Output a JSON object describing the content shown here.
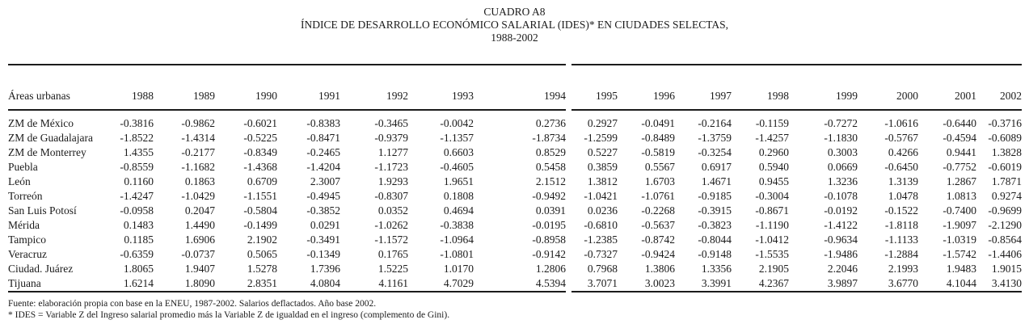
{
  "title": {
    "cuadro": "CUADRO A8",
    "heading": "ÍNDICE DE DESARROLLO ECONÓMICO SALARIAL (IDES)* EN CIUDADES SELECTAS,",
    "period": "1988-2002"
  },
  "table": {
    "corner_header": "Áreas urbanas",
    "years_left": [
      "1988",
      "1989",
      "1990",
      "1991",
      "1992",
      "1993",
      "1994"
    ],
    "years_right": [
      "1995",
      "1996",
      "1997",
      "1998",
      "1999",
      "2000",
      "2001",
      "2002"
    ],
    "rows": [
      {
        "label": "ZM de México",
        "values_left": [
          "-0.3816",
          "-0.9862",
          "-0.6021",
          "-0.8383",
          "-0.3465",
          "-0.0042",
          "0.2736"
        ],
        "values_right": [
          "0.2927",
          "-0.0491",
          "-0.2164",
          "-0.1159",
          "-0.7272",
          "-1.0616",
          "-0.6440",
          "-0.3716"
        ]
      },
      {
        "label": "ZM de Guadalajara",
        "values_left": [
          "-1.8522",
          "-1.4314",
          "-0.5225",
          "-0.8471",
          "-0.9379",
          "-1.1357",
          "-1.8734"
        ],
        "values_right": [
          "-1.2599",
          "-0.8489",
          "-1.3759",
          "-1.4257",
          "-1.1830",
          "-0.5767",
          "-0.4594",
          "-0.6089"
        ]
      },
      {
        "label": "ZM de Monterrey",
        "values_left": [
          "1.4355",
          "-0.2177",
          "-0.8349",
          "-0.2465",
          "1.1277",
          "0.6603",
          "0.8529"
        ],
        "values_right": [
          "0.5227",
          "-0.5819",
          "-0.3254",
          "0.2960",
          "0.3003",
          "0.4266",
          "0.9441",
          "1.3828"
        ]
      },
      {
        "label": "Puebla",
        "values_left": [
          "-0.8559",
          "-1.1682",
          "-1.4368",
          "-1.4204",
          "-1.1723",
          "-0.4605",
          "0.5458"
        ],
        "values_right": [
          "0.3859",
          "0.5567",
          "0.6917",
          "0.5940",
          "0.0669",
          "-0.6450",
          "-0.7752",
          "-0.6019"
        ]
      },
      {
        "label": "León",
        "values_left": [
          "0.1160",
          "0.1863",
          "0.6709",
          "2.3007",
          "1.9293",
          "1.9651",
          "2.1512"
        ],
        "values_right": [
          "1.3812",
          "1.6703",
          "1.4671",
          "0.9455",
          "1.3236",
          "1.3139",
          "1.2867",
          "1.7871"
        ]
      },
      {
        "label": "Torreón",
        "values_left": [
          "-1.4247",
          "-1.0429",
          "-1.1551",
          "-0.4945",
          "-0.8307",
          "0.1808",
          "-0.9492"
        ],
        "values_right": [
          "-1.0421",
          "-1.0761",
          "-0.9185",
          "-0.3004",
          "-0.1078",
          "1.0478",
          "1.0813",
          "0.9274"
        ]
      },
      {
        "label": "San Luis Potosí",
        "values_left": [
          "-0.0958",
          "0.2047",
          "-0.5804",
          "-0.3852",
          "0.0352",
          "0.4694",
          "0.0391"
        ],
        "values_right": [
          "0.0236",
          "-0.2268",
          "-0.3915",
          "-0.8671",
          "-0.0192",
          "-0.1522",
          "-0.7400",
          "-0.9699"
        ]
      },
      {
        "label": "Mérida",
        "values_left": [
          "0.1483",
          "1.4490",
          "-0.1499",
          "0.0291",
          "-1.0262",
          "-0.3838",
          "-0.0195"
        ],
        "values_right": [
          "-0.6810",
          "-0.5637",
          "-0.3823",
          "-1.1190",
          "-1.4122",
          "-1.8118",
          "-1.9097",
          "-2.1290"
        ]
      },
      {
        "label": "Tampico",
        "values_left": [
          "0.1185",
          "1.6906",
          "2.1902",
          "-0.3491",
          "-1.1572",
          "-1.0964",
          "-0.8958"
        ],
        "values_right": [
          "-1.2385",
          "-0.8742",
          "-0.8044",
          "-1.0412",
          "-0.9634",
          "-1.1133",
          "-1.0319",
          "-0.8564"
        ]
      },
      {
        "label": "Veracruz",
        "values_left": [
          "-0.6359",
          "-0.0737",
          "0.5065",
          "-0.1349",
          "0.1765",
          "-1.0801",
          "-0.9142"
        ],
        "values_right": [
          "-0.7327",
          "-0.9424",
          "-0.9148",
          "-1.5535",
          "-1.9486",
          "-1.2884",
          "-1.5742",
          "-1.4406"
        ]
      },
      {
        "label": "Ciudad. Juárez",
        "values_left": [
          "1.8065",
          "1.9407",
          "1.5278",
          "1.7396",
          "1.5225",
          "1.0170",
          "1.2806"
        ],
        "values_right": [
          "0.7968",
          "1.3806",
          "1.3356",
          "2.1905",
          "2.2046",
          "2.1993",
          "1.9483",
          "1.9015"
        ]
      },
      {
        "label": "Tijuana",
        "values_left": [
          "1.6214",
          "1.8090",
          "2.8351",
          "4.0804",
          "4.1161",
          "4.7029",
          "4.5394"
        ],
        "values_right": [
          "3.7071",
          "3.0023",
          "3.3991",
          "4.2367",
          "3.9897",
          "3.6770",
          "4.1044",
          "3.4130"
        ]
      }
    ]
  },
  "footnotes": {
    "source": "Fuente: elaboración propia con base en la ENEU, 1987-2002. Salarios deflactados. Año base 2002.",
    "definition": "* IDES = Variable Z del Ingreso salarial promedio más la Variable Z de igualdad en el ingreso (complemento de Gini)."
  },
  "colors": {
    "text": "#1b1b1b",
    "rule": "#1b1b1b",
    "background": "#ffffff"
  }
}
